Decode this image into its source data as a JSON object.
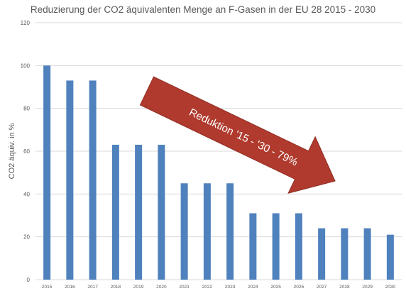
{
  "chart_data": {
    "type": "bar",
    "title": "Reduzierung der CO2 äquivalenten Menge an F-Gasen in der EU 28 2015 - 2030",
    "xlabel": "",
    "ylabel": "CO2 äquiv. in %",
    "ylim": [
      0,
      120
    ],
    "yticks": [
      0,
      20,
      40,
      60,
      80,
      100,
      120
    ],
    "grid": true,
    "categories": [
      "2015",
      "2016",
      "2017",
      "2018",
      "2019",
      "2020",
      "2021",
      "2022",
      "2023",
      "2024",
      "2025",
      "2026",
      "2027",
      "2028",
      "2029",
      "2030"
    ],
    "values": [
      100,
      93,
      93,
      63,
      63,
      63,
      45,
      45,
      45,
      31,
      31,
      31,
      24,
      24,
      24,
      21
    ],
    "bar_color": "#4f81bd",
    "annotation": {
      "text": "Reduktion '15 - '30 - 79%",
      "shape": "arrow",
      "color": "#b03a2e",
      "text_color": "#ffffff"
    }
  }
}
